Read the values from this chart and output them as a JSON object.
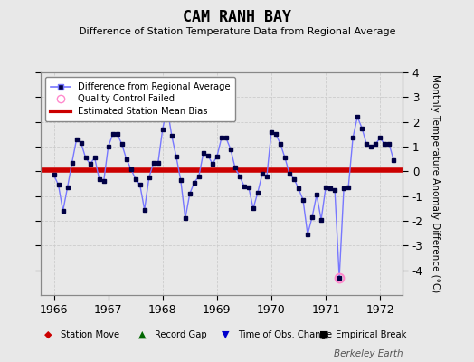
{
  "title": "CAM RANH BAY",
  "subtitle": "Difference of Station Temperature Data from Regional Average",
  "ylabel": "Monthly Temperature Anomaly Difference (°C)",
  "bias_value": 0.05,
  "ylim": [
    -5,
    4
  ],
  "yticks": [
    -4,
    -3,
    -2,
    -1,
    0,
    1,
    2,
    3,
    4
  ],
  "bg_color": "#e8e8e8",
  "plot_bg_color": "#e8e8e8",
  "line_color": "#7777ff",
  "marker_color": "#000044",
  "bias_color": "#cc0000",
  "qc_color": "#ff88cc",
  "watermark": "Berkeley Earth",
  "xlabel_years": [
    1966,
    1967,
    1968,
    1969,
    1970,
    1971,
    1972
  ],
  "data_x": [
    1966.0,
    1966.083,
    1966.167,
    1966.25,
    1966.333,
    1966.417,
    1966.5,
    1966.583,
    1966.667,
    1966.75,
    1966.833,
    1966.917,
    1967.0,
    1967.083,
    1967.167,
    1967.25,
    1967.333,
    1967.417,
    1967.5,
    1967.583,
    1967.667,
    1967.75,
    1967.833,
    1967.917,
    1968.0,
    1968.083,
    1968.167,
    1968.25,
    1968.333,
    1968.417,
    1968.5,
    1968.583,
    1968.667,
    1968.75,
    1968.833,
    1968.917,
    1969.0,
    1969.083,
    1969.167,
    1969.25,
    1969.333,
    1969.417,
    1969.5,
    1969.583,
    1969.667,
    1969.75,
    1969.833,
    1969.917,
    1970.0,
    1970.083,
    1970.167,
    1970.25,
    1970.333,
    1970.417,
    1970.5,
    1970.583,
    1970.667,
    1970.75,
    1970.833,
    1970.917,
    1971.0,
    1971.083,
    1971.167,
    1971.25,
    1971.333,
    1971.417,
    1971.5,
    1971.583,
    1971.667,
    1971.75,
    1971.833,
    1971.917,
    1972.0,
    1972.083,
    1972.167,
    1972.25
  ],
  "data_y": [
    -0.15,
    -0.55,
    -1.6,
    -0.65,
    0.35,
    1.3,
    1.15,
    0.55,
    0.3,
    0.55,
    -0.3,
    -0.4,
    1.0,
    1.5,
    1.5,
    1.1,
    0.5,
    0.1,
    -0.3,
    -0.55,
    -1.55,
    -0.25,
    0.35,
    0.35,
    1.7,
    2.6,
    1.45,
    0.6,
    -0.35,
    -1.9,
    -0.9,
    -0.45,
    -0.2,
    0.75,
    0.65,
    0.3,
    0.6,
    1.35,
    1.35,
    0.9,
    0.15,
    -0.2,
    -0.6,
    -0.65,
    -1.5,
    -0.85,
    -0.1,
    -0.2,
    1.6,
    1.5,
    1.1,
    0.55,
    -0.1,
    -0.3,
    -0.7,
    -1.15,
    -2.55,
    -1.85,
    -0.95,
    -1.95,
    -0.65,
    -0.7,
    -0.75,
    -4.3,
    -0.7,
    -0.65,
    1.35,
    2.2,
    1.75,
    1.1,
    1.0,
    1.1,
    1.35,
    1.1,
    1.1,
    0.45
  ],
  "qc_fail_indices": [
    63
  ],
  "x_min": 1965.75,
  "x_max": 1972.42
}
